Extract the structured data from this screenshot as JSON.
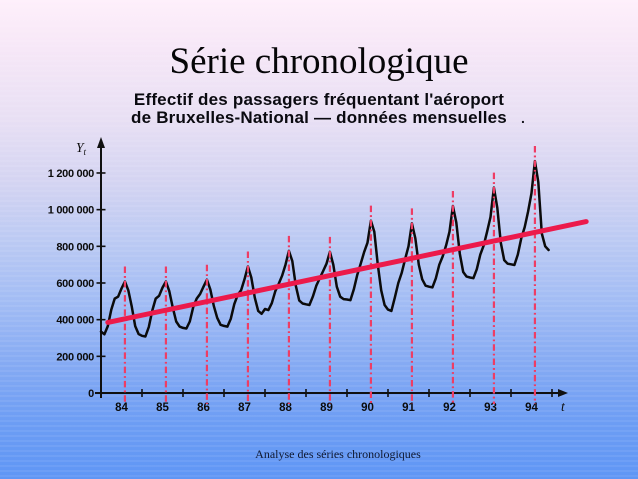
{
  "slide": {
    "title": "Série chronologique",
    "subtitle_line1": "Effectif des passagers fréquentant l'aéroport",
    "subtitle_line2": "de Bruxelles-National — données mensuelles",
    "subtitle_period": ".",
    "footer": "Analyse des séries chronologiques"
  },
  "chart_data": {
    "type": "line",
    "title": "Effectif des passagers fréquentant l'aéroport de Bruxelles-National — données mensuelles",
    "x_tick_labels": [
      "84",
      "85",
      "86",
      "87",
      "88",
      "89",
      "90",
      "91",
      "92",
      "93",
      "94"
    ],
    "x_axis_letter": "t",
    "y_axis_letter_main": "Y",
    "y_axis_letter_sub": "t",
    "y_tick_values": [
      0,
      200000,
      400000,
      600000,
      800000,
      1000000,
      1200000
    ],
    "y_tick_labels": [
      "0",
      "200 000",
      "400 000",
      "600 000",
      "800 000",
      "1 000 000",
      "1 200 000"
    ],
    "ylim": [
      0,
      1300000
    ],
    "grid": false,
    "axis_color": "#101010",
    "series": [
      {
        "name": "passagers-mensuels-bruxelles-national",
        "color": "#0b0b0b",
        "values": [
          335000,
          320000,
          365000,
          455000,
          515000,
          525000,
          570000,
          608000,
          560000,
          470000,
          365000,
          322000,
          312000,
          308000,
          360000,
          450000,
          515000,
          530000,
          575000,
          608000,
          555000,
          465000,
          390000,
          362000,
          355000,
          352000,
          390000,
          470000,
          515000,
          540000,
          580000,
          618000,
          565000,
          475000,
          410000,
          372000,
          366000,
          362000,
          405000,
          485000,
          535000,
          560000,
          620000,
          690000,
          630000,
          520000,
          448000,
          432000,
          458000,
          452000,
          490000,
          555000,
          595000,
          640000,
          700000,
          775000,
          720000,
          585000,
          505000,
          488000,
          484000,
          480000,
          525000,
          585000,
          625000,
          665000,
          705000,
          770000,
          700000,
          580000,
          525000,
          512000,
          510000,
          506000,
          565000,
          645000,
          705000,
          768000,
          820000,
          940000,
          880000,
          700000,
          560000,
          480000,
          455000,
          448000,
          520000,
          600000,
          655000,
          730000,
          800000,
          925000,
          845000,
          700000,
          620000,
          585000,
          580000,
          576000,
          625000,
          700000,
          745000,
          805000,
          880000,
          1020000,
          930000,
          760000,
          660000,
          635000,
          630000,
          626000,
          675000,
          755000,
          805000,
          880000,
          960000,
          1120000,
          1010000,
          820000,
          725000,
          705000,
          702000,
          698000,
          755000,
          845000,
          905000,
          990000,
          1090000,
          1265000,
          1150000,
          870000,
          800000,
          780000
        ]
      }
    ],
    "trend_line": {
      "color": "#ec1a4b",
      "start": {
        "month_index": 2,
        "value": 385000
      },
      "end": {
        "month_index": 142,
        "value": 935000
      }
    },
    "season_peak_lines": {
      "color": "#ee3d64",
      "style": "dash-dot",
      "month_indices": [
        7,
        19,
        31,
        43,
        55,
        67,
        79,
        91,
        103,
        115,
        127
      ]
    }
  }
}
